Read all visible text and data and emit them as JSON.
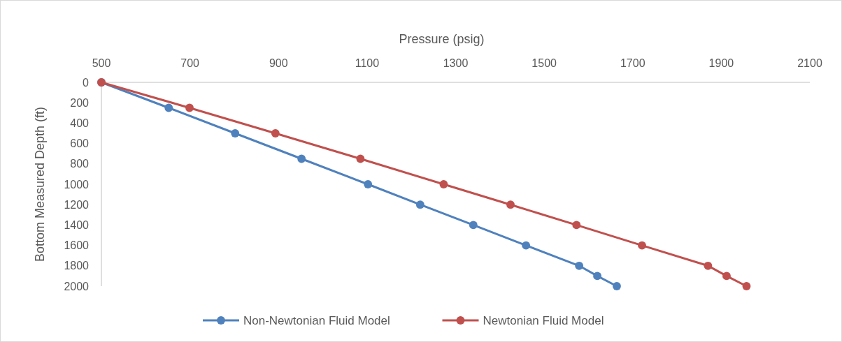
{
  "chart_data": {
    "type": "line",
    "xlabel": "Pressure (psig)",
    "ylabel": "Bottom Measured Depth (ft)",
    "xlim": [
      500,
      2100
    ],
    "xticks": [
      500,
      700,
      900,
      1100,
      1300,
      1500,
      1700,
      1900,
      2100
    ],
    "ylim": [
      2000,
      0
    ],
    "yticks": [
      0,
      200,
      400,
      600,
      800,
      1000,
      1200,
      1400,
      1600,
      1800,
      2000
    ],
    "marker": "circle",
    "legend": "bottom",
    "series": [
      {
        "name": "Non-Newtonian Fluid Model",
        "color": "#4f81bd",
        "x": [
          500,
          652,
          802,
          952,
          1102,
          1220,
          1340,
          1459,
          1579,
          1620,
          1664
        ],
        "values": [
          0,
          250,
          500,
          750,
          1000,
          1200,
          1400,
          1600,
          1800,
          1900,
          2000
        ]
      },
      {
        "name": "Newtonian Fluid Model",
        "color": "#c0504d",
        "x": [
          500,
          699,
          893,
          1085,
          1273,
          1424,
          1573,
          1721,
          1870,
          1912,
          1957
        ],
        "values": [
          0,
          250,
          500,
          750,
          1000,
          1200,
          1400,
          1600,
          1800,
          1900,
          2000
        ]
      }
    ]
  }
}
